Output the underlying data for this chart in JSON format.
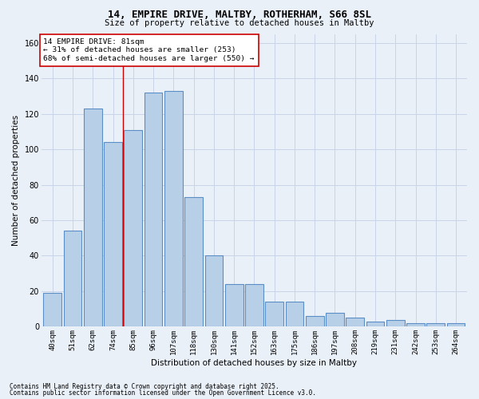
{
  "title1": "14, EMPIRE DRIVE, MALTBY, ROTHERHAM, S66 8SL",
  "title2": "Size of property relative to detached houses in Maltby",
  "xlabel": "Distribution of detached houses by size in Maltby",
  "ylabel": "Number of detached properties",
  "categories": [
    "40sqm",
    "51sqm",
    "62sqm",
    "74sqm",
    "85sqm",
    "96sqm",
    "107sqm",
    "118sqm",
    "130sqm",
    "141sqm",
    "152sqm",
    "163sqm",
    "175sqm",
    "186sqm",
    "197sqm",
    "208sqm",
    "219sqm",
    "231sqm",
    "242sqm",
    "253sqm",
    "264sqm"
  ],
  "values": [
    19,
    54,
    123,
    104,
    111,
    132,
    133,
    73,
    40,
    24,
    24,
    14,
    14,
    6,
    8,
    5,
    3,
    4,
    2,
    2,
    2
  ],
  "bar_color": "#b8cfe8",
  "bar_edge_color": "#5b8ec4",
  "grid_color": "#c8d4e8",
  "background_color": "#eaf0f8",
  "vline_color": "#cc0000",
  "vline_x_index": 3.5,
  "annotation_text": "14 EMPIRE DRIVE: 81sqm\n← 31% of detached houses are smaller (253)\n68% of semi-detached houses are larger (550) →",
  "annotation_box_color": "#ffffff",
  "annotation_box_edge": "#cc0000",
  "footnote1": "Contains HM Land Registry data © Crown copyright and database right 2025.",
  "footnote2": "Contains public sector information licensed under the Open Government Licence v3.0.",
  "ylim": [
    0,
    165
  ],
  "yticks": [
    0,
    20,
    40,
    60,
    80,
    100,
    120,
    140,
    160
  ]
}
